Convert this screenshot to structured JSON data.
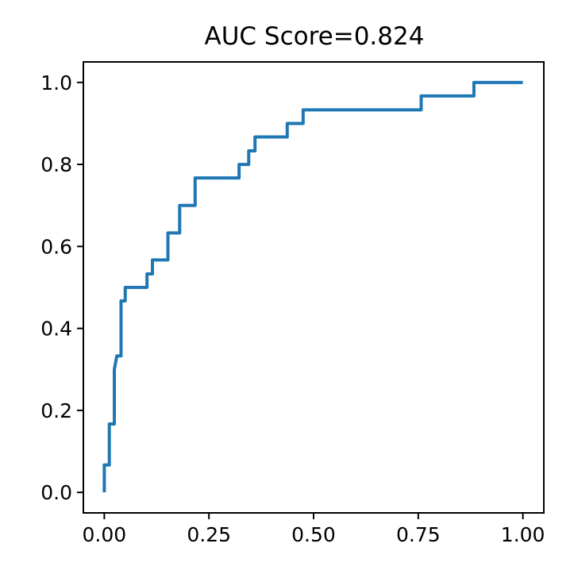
{
  "chart_data": {
    "type": "line",
    "title": "AUC Score=0.824",
    "xlabel": "",
    "ylabel": "",
    "xlim": [
      -0.05,
      1.05
    ],
    "ylim": [
      -0.05,
      1.05
    ],
    "grid": false,
    "x_ticks": [
      0.0,
      0.25,
      0.5,
      0.75,
      1.0
    ],
    "x_tick_labels": [
      "0.00",
      "0.25",
      "0.50",
      "0.75",
      "1.00"
    ],
    "y_ticks": [
      0.0,
      0.2,
      0.4,
      0.6,
      0.8,
      1.0
    ],
    "y_tick_labels": [
      "0.0",
      "0.2",
      "0.4",
      "0.6",
      "0.8",
      "1.0"
    ],
    "series": [
      {
        "color": "#1f77b4",
        "x": [
          0.0,
          0.0,
          0.012,
          0.012,
          0.024,
          0.024,
          0.03,
          0.04,
          0.04,
          0.05,
          0.05,
          0.102,
          0.102,
          0.115,
          0.115,
          0.152,
          0.152,
          0.18,
          0.18,
          0.217,
          0.217,
          0.322,
          0.322,
          0.345,
          0.345,
          0.36,
          0.36,
          0.437,
          0.437,
          0.475,
          0.475,
          0.757,
          0.757,
          0.883,
          0.883,
          1.0
        ],
        "y": [
          0.0,
          0.067,
          0.067,
          0.167,
          0.167,
          0.3,
          0.333,
          0.333,
          0.467,
          0.467,
          0.5,
          0.5,
          0.533,
          0.533,
          0.567,
          0.567,
          0.633,
          0.633,
          0.7,
          0.7,
          0.767,
          0.767,
          0.8,
          0.8,
          0.833,
          0.833,
          0.867,
          0.867,
          0.9,
          0.9,
          0.933,
          0.933,
          0.967,
          0.967,
          1.0,
          1.0
        ]
      }
    ]
  }
}
